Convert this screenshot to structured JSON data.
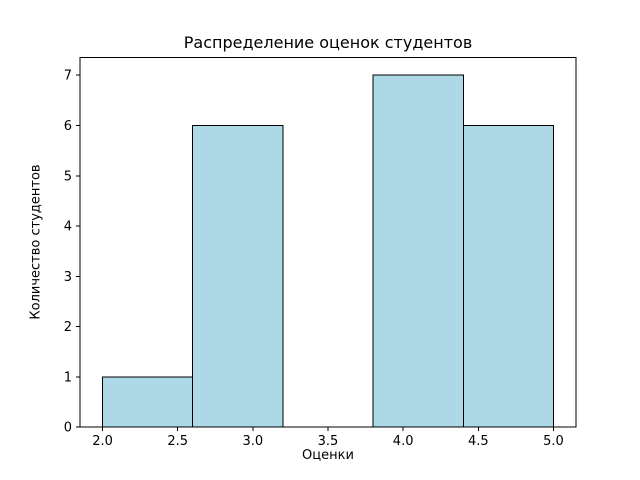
{
  "chart_data": {
    "type": "bar",
    "subtype": "histogram",
    "title": "Распределение оценок студентов",
    "xlabel": "Оценки",
    "ylabel": "Количество студентов",
    "bins": [
      {
        "x0": 2.0,
        "x1": 2.6,
        "count": 1
      },
      {
        "x0": 2.6,
        "x1": 3.2,
        "count": 6
      },
      {
        "x0": 3.2,
        "x1": 3.8,
        "count": 0
      },
      {
        "x0": 3.8,
        "x1": 4.4,
        "count": 7
      },
      {
        "x0": 4.4,
        "x1": 5.0,
        "count": 6
      }
    ],
    "x_ticks": [
      2.0,
      2.5,
      3.0,
      3.5,
      4.0,
      4.5,
      5.0
    ],
    "x_tick_labels": [
      "2.0",
      "2.5",
      "3.0",
      "3.5",
      "4.0",
      "4.5",
      "5.0"
    ],
    "y_ticks": [
      0,
      1,
      2,
      3,
      4,
      5,
      6,
      7
    ],
    "y_tick_labels": [
      "0",
      "1",
      "2",
      "3",
      "4",
      "5",
      "6",
      "7"
    ],
    "xlim": [
      1.85,
      5.15
    ],
    "ylim": [
      0,
      7.35
    ],
    "grid": false,
    "legend": "none",
    "bar_fill_color": "#ADD8E6",
    "bar_edge_color": "#000000",
    "axes_color": "#000000",
    "background_color": "#ffffff"
  }
}
